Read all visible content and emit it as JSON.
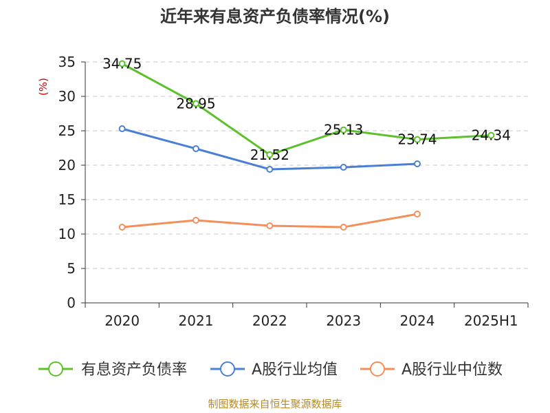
{
  "chart_data": {
    "type": "line",
    "title": "近年来有息资产负债率情况(%)",
    "ylabel": "(%)",
    "xlabel": "",
    "categories": [
      "2020",
      "2021",
      "2022",
      "2023",
      "2024",
      "2025H1"
    ],
    "ylim": [
      0,
      35
    ],
    "yticks": [
      0,
      5,
      10,
      15,
      20,
      25,
      30,
      35
    ],
    "grid": true,
    "legend_position": "bottom",
    "series": [
      {
        "name": "有息资产负债率",
        "color": "#5cc12a",
        "values": [
          34.75,
          28.95,
          21.52,
          25.13,
          23.74,
          24.34
        ],
        "labels": [
          "34.75",
          "28.95",
          "21.52",
          "25.13",
          "23.74",
          "24.34"
        ]
      },
      {
        "name": "A股行业均值",
        "color": "#4a7fd6",
        "values": [
          25.3,
          22.4,
          19.4,
          19.7,
          20.2,
          null
        ]
      },
      {
        "name": "A股行业中位数",
        "color": "#f48f5a",
        "values": [
          11.0,
          12.0,
          11.2,
          11.0,
          12.9,
          null
        ]
      }
    ]
  },
  "footer": {
    "source": "制图数据来自恒生聚源数据库"
  }
}
